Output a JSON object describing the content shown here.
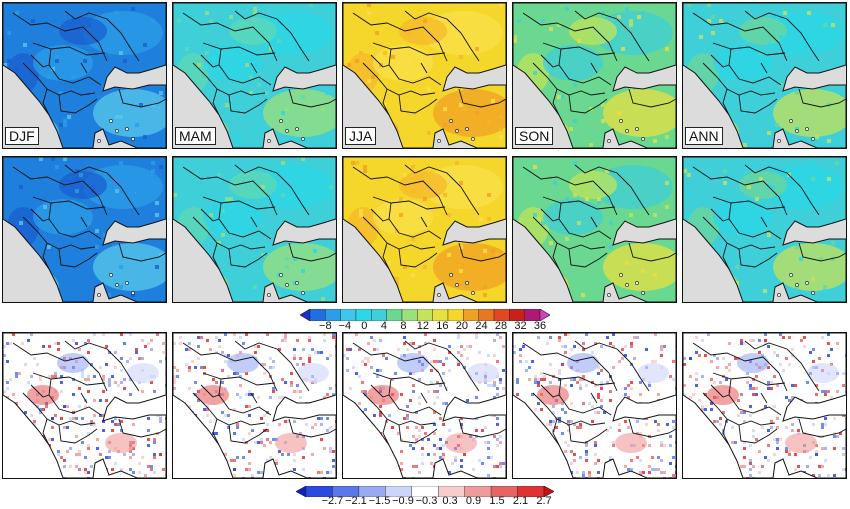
{
  "row1": {
    "panels": [
      {
        "label": "DJF",
        "c0": "#1f7fdc",
        "c1": "#2a9ee8",
        "c2": "#1a5fd0",
        "c3": "#58c8ec"
      },
      {
        "label": "MAM",
        "c0": "#3fcfd8",
        "c1": "#2bd7e6",
        "c2": "#5ed8b4",
        "c3": "#9be07a"
      },
      {
        "label": "JJA",
        "c0": "#f5d62a",
        "c1": "#f9e04a",
        "c2": "#f4b82a",
        "c3": "#f0a024"
      },
      {
        "label": "SON",
        "c0": "#6ad890",
        "c1": "#3fcfd8",
        "c2": "#bfe45a",
        "c3": "#e8e040"
      },
      {
        "label": "ANN",
        "c0": "#3fcfd8",
        "c1": "#2ad8e8",
        "c2": "#6ed69a",
        "c3": "#c4e25a"
      }
    ]
  },
  "row2": {
    "panels": [
      {
        "c0": "#1f7fdc",
        "c1": "#2a9ee8",
        "c2": "#1a5fd0",
        "c3": "#58c8ec"
      },
      {
        "c0": "#3fcfd8",
        "c1": "#2bd7e6",
        "c2": "#5ed8b4",
        "c3": "#9be07a"
      },
      {
        "c0": "#f5d62a",
        "c1": "#f9e04a",
        "c2": "#f4b82a",
        "c3": "#f0a024"
      },
      {
        "c0": "#6ad890",
        "c1": "#3fcfd8",
        "c2": "#bfe45a",
        "c3": "#e8e040"
      },
      {
        "c0": "#3fcfd8",
        "c1": "#2ad8e8",
        "c2": "#6ed69a",
        "c3": "#c4e25a"
      }
    ]
  },
  "colorbar_top": {
    "tick_labels": [
      "−8",
      "−4",
      "0",
      "4",
      "8",
      "12",
      "16",
      "20",
      "24",
      "28",
      "32",
      "36"
    ],
    "colors": [
      "#1a2fd0",
      "#1f6fe0",
      "#2a9ee8",
      "#3fc6ec",
      "#2ad8e8",
      "#3fcfd8",
      "#6ad890",
      "#9be07a",
      "#c4e25a",
      "#e8e040",
      "#f5d62a",
      "#f0a024",
      "#e87820",
      "#e04820",
      "#c8201a",
      "#b01878",
      "#d040c0"
    ]
  },
  "colorbar_bottom": {
    "tick_labels": [
      "−2.7",
      "−2.1",
      "−1.5",
      "−0.9",
      "−0.3",
      "0.3",
      "0.9",
      "1.5",
      "2.1",
      "2.7"
    ],
    "colors": [
      "#1020c8",
      "#2a4ae0",
      "#5a78ec",
      "#98aaf4",
      "#cdd6fa",
      "#ffffff",
      "#f8cccc",
      "#f09a9a",
      "#e86464",
      "#e03232",
      "#d01010"
    ]
  }
}
